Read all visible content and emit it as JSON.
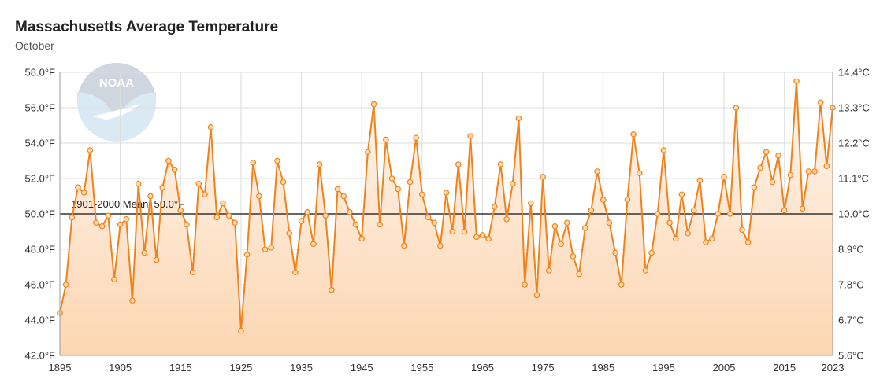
{
  "chart_data": {
    "type": "line",
    "title": "Massachusetts Average Temperature",
    "subtitle": "October",
    "x_ticks": [
      "1895",
      "1905",
      "1915",
      "1925",
      "1935",
      "1945",
      "1955",
      "1965",
      "1975",
      "1985",
      "1995",
      "2005",
      "2015",
      "2023"
    ],
    "y_ticks_left": [
      "42.0°F",
      "44.0°F",
      "46.0°F",
      "48.0°F",
      "50.0°F",
      "52.0°F",
      "54.0°F",
      "56.0°F",
      "58.0°F"
    ],
    "y_ticks_right": [
      "5.6°C",
      "6.7°C",
      "7.8°C",
      "8.9°C",
      "10.0°C",
      "11.1°C",
      "12.2°C",
      "13.3°C",
      "14.4°C"
    ],
    "xlim": [
      1895,
      2023
    ],
    "ylim": [
      42,
      58
    ],
    "mean_label": "1901-2000 Mean: 50.0°F",
    "mean_value": 50.0,
    "grid": true,
    "colors": {
      "line": "#f0821e",
      "fill_top": "#fcd9b8",
      "mean_line": "#333333",
      "grid": "#dddddd"
    },
    "logo_text": "NOAA",
    "x": [
      1895,
      1896,
      1897,
      1898,
      1899,
      1900,
      1901,
      1902,
      1903,
      1904,
      1905,
      1906,
      1907,
      1908,
      1909,
      1910,
      1911,
      1912,
      1913,
      1914,
      1915,
      1916,
      1917,
      1918,
      1919,
      1920,
      1921,
      1922,
      1923,
      1924,
      1925,
      1926,
      1927,
      1928,
      1929,
      1930,
      1931,
      1932,
      1933,
      1934,
      1935,
      1936,
      1937,
      1938,
      1939,
      1940,
      1941,
      1942,
      1943,
      1944,
      1945,
      1946,
      1947,
      1948,
      1949,
      1950,
      1951,
      1952,
      1953,
      1954,
      1955,
      1956,
      1957,
      1958,
      1959,
      1960,
      1961,
      1962,
      1963,
      1964,
      1965,
      1966,
      1967,
      1968,
      1969,
      1970,
      1971,
      1972,
      1973,
      1974,
      1975,
      1976,
      1977,
      1978,
      1979,
      1980,
      1981,
      1982,
      1983,
      1984,
      1985,
      1986,
      1987,
      1988,
      1989,
      1990,
      1991,
      1992,
      1993,
      1994,
      1995,
      1996,
      1997,
      1998,
      1999,
      2000,
      2001,
      2002,
      2003,
      2004,
      2005,
      2006,
      2007,
      2008,
      2009,
      2010,
      2011,
      2012,
      2013,
      2014,
      2015,
      2016,
      2017,
      2018,
      2019,
      2020,
      2021,
      2022,
      2023
    ],
    "values": [
      44.4,
      46.0,
      49.8,
      51.5,
      51.2,
      53.6,
      49.5,
      49.3,
      49.9,
      46.3,
      49.4,
      49.7,
      45.1,
      51.7,
      47.8,
      51.0,
      47.4,
      51.5,
      53.0,
      52.5,
      50.2,
      49.4,
      46.7,
      51.7,
      51.1,
      54.9,
      49.8,
      50.6,
      49.9,
      49.5,
      43.4,
      47.7,
      52.9,
      51.0,
      48.0,
      48.1,
      53.0,
      51.8,
      48.9,
      46.7,
      49.6,
      50.1,
      48.3,
      52.8,
      49.9,
      45.7,
      51.4,
      51.0,
      50.1,
      49.4,
      48.6,
      53.5,
      56.2,
      49.4,
      54.2,
      52.0,
      51.4,
      48.2,
      51.8,
      54.3,
      51.1,
      49.8,
      49.5,
      48.2,
      51.2,
      49.0,
      52.8,
      49.0,
      54.4,
      48.7,
      48.8,
      48.6,
      50.4,
      52.8,
      49.7,
      51.7,
      55.4,
      46.0,
      50.6,
      45.4,
      52.1,
      46.8,
      49.3,
      48.3,
      49.5,
      47.6,
      46.6,
      49.2,
      50.2,
      52.4,
      50.8,
      49.5,
      47.8,
      46.0,
      50.8,
      54.5,
      52.3,
      46.8,
      47.8,
      50.0,
      53.6,
      49.5,
      48.6,
      51.1,
      48.9,
      50.2,
      51.9,
      48.4,
      48.6,
      50.0,
      52.1,
      50.0,
      56.0,
      49.1,
      48.4,
      51.5,
      52.6,
      53.5,
      51.8,
      53.3,
      50.2,
      52.2,
      57.5,
      50.3,
      52.4,
      52.4,
      56.3,
      52.7,
      56.0
    ]
  }
}
